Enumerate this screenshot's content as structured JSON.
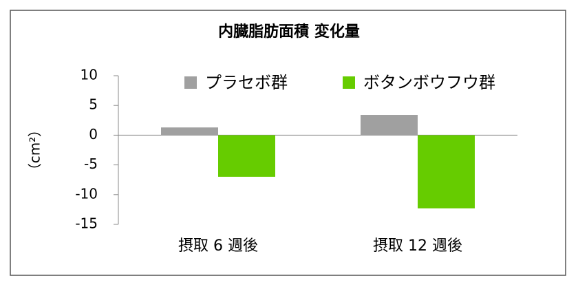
{
  "chart_data": {
    "type": "bar",
    "title": "内臓脂肪面積 変化量",
    "y_label": "（cm²）",
    "categories": [
      "摂取 6 週後",
      "摂取 12 週後"
    ],
    "series": [
      {
        "name": "プラセボ群",
        "color": "#a0a0a0",
        "values": [
          1.3,
          3.4
        ]
      },
      {
        "name": "ボタンボウフウ群",
        "color": "#66cc00",
        "values": [
          -7.0,
          -12.3
        ]
      }
    ],
    "ylim": [
      -15,
      10
    ],
    "yticks": [
      -15,
      -10,
      -5,
      0,
      5,
      10
    ],
    "grid": false,
    "legend": "top"
  }
}
